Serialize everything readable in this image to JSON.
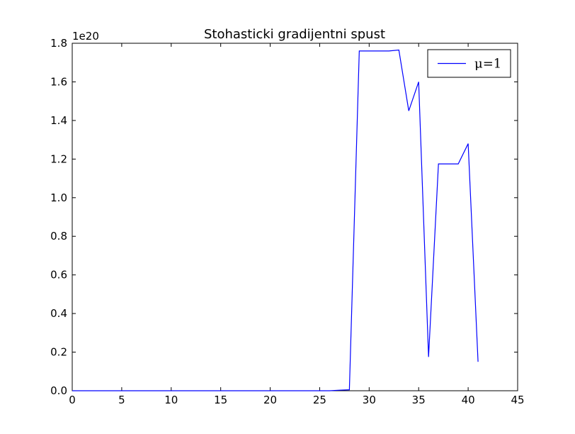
{
  "chart_data": {
    "type": "line",
    "title": "Stohasticki gradijentni spust",
    "xlabel": "",
    "ylabel": "",
    "xlim": [
      0,
      45
    ],
    "ylim": [
      0,
      1.8
    ],
    "y_offset_label": "1e20",
    "x_ticks": [
      0,
      5,
      10,
      15,
      20,
      25,
      30,
      35,
      40,
      45
    ],
    "x_tick_labels": [
      "0",
      "5",
      "10",
      "15",
      "20",
      "25",
      "30",
      "35",
      "40",
      "45"
    ],
    "y_ticks": [
      0.0,
      0.2,
      0.4,
      0.6,
      0.8,
      1.0,
      1.2,
      1.4,
      1.6,
      1.8
    ],
    "y_tick_labels": [
      "0.0",
      "0.2",
      "0.4",
      "0.6",
      "0.8",
      "1.0",
      "1.2",
      "1.4",
      "1.6",
      "1.8"
    ],
    "grid": false,
    "legend_position": "top-right",
    "color": "#0000ff",
    "series": [
      {
        "name": "μ=1",
        "x": [
          0,
          1,
          2,
          3,
          4,
          5,
          6,
          7,
          8,
          9,
          10,
          11,
          12,
          13,
          14,
          15,
          16,
          17,
          18,
          19,
          20,
          21,
          22,
          23,
          24,
          25,
          26,
          27,
          28,
          29,
          30,
          31,
          32,
          33,
          34,
          35,
          36,
          37,
          38,
          39,
          40,
          41
        ],
        "y": [
          0,
          0,
          0,
          0,
          0,
          0,
          0,
          0,
          0,
          0,
          0,
          0,
          0,
          0,
          0,
          0,
          0,
          0,
          0,
          0,
          0,
          0,
          0,
          0,
          0,
          0,
          0,
          0.003,
          0.005,
          1.76,
          1.76,
          1.76,
          1.76,
          1.765,
          1.45,
          1.6,
          0.175,
          1.175,
          1.175,
          1.175,
          1.28,
          0.15
        ]
      }
    ]
  }
}
